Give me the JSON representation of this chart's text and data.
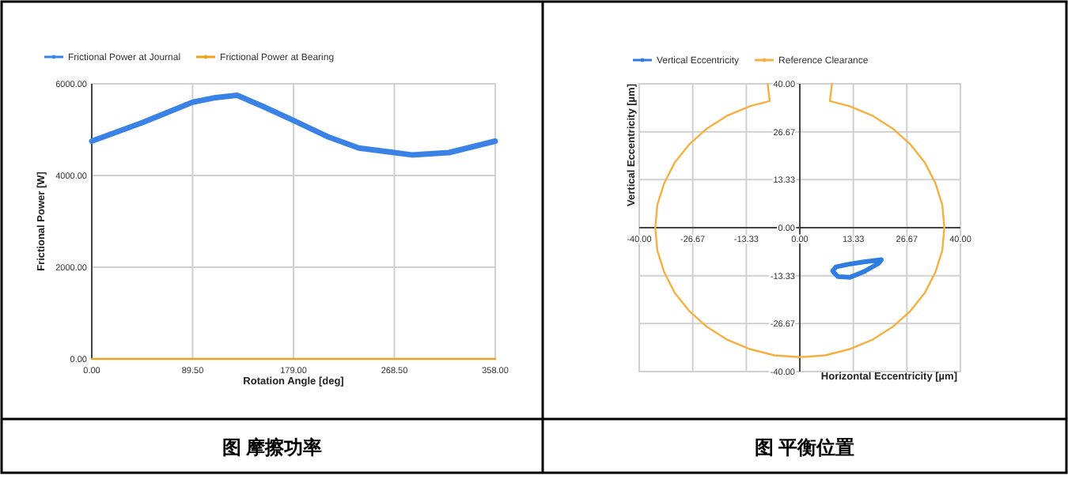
{
  "chart_data": [
    {
      "type": "line",
      "title": "图 摩擦功率",
      "xlabel": "Rotation Angle [deg]",
      "ylabel": "Frictional Power [W]",
      "xlim": [
        0,
        358
      ],
      "xticks": [
        {
          "value": 0,
          "label": "0.00"
        },
        {
          "value": 89.5,
          "label": "89.50"
        },
        {
          "value": 179,
          "label": "179.00"
        },
        {
          "value": 268.5,
          "label": "268.50"
        },
        {
          "value": 358,
          "label": "358.00"
        }
      ],
      "ylim": [
        0,
        6000
      ],
      "yticks": [
        {
          "value": 0,
          "label": "0.00"
        },
        {
          "value": 2000,
          "label": "2000.00"
        },
        {
          "value": 4000,
          "label": "4000.00"
        },
        {
          "value": 6000,
          "label": "6000.00"
        }
      ],
      "grid": true,
      "legend": "top",
      "series": [
        {
          "name": "Frictional Power at Journal",
          "color": "#3b82e6",
          "x": [
            0,
            44.6,
            89.5,
            110,
            129,
            152.5,
            179,
            209,
            237,
            268.5,
            284,
            317,
            358
          ],
          "values": [
            4750,
            5150,
            5600,
            5700,
            5750,
            5500,
            5200,
            4850,
            4600,
            4500,
            4450,
            4500,
            4750
          ]
        },
        {
          "name": "Frictional Power at Bearing",
          "color": "#f0a020",
          "x": [
            0,
            89.5,
            179,
            268.5,
            358
          ],
          "values": [
            0,
            0,
            0,
            0,
            0
          ]
        }
      ]
    },
    {
      "type": "line",
      "title": "图 平衡位置",
      "xlabel": "Horizontal Eccentricity [µm]",
      "ylabel": "Vertical Eccentricity [µm]",
      "xlim": [
        -40,
        40
      ],
      "xticks": [
        {
          "value": -40,
          "label": "-40.00"
        },
        {
          "value": -26.67,
          "label": "-26.67"
        },
        {
          "value": -13.33,
          "label": "-13.33"
        },
        {
          "value": 0,
          "label": "0.00"
        },
        {
          "value": 13.33,
          "label": "13.33"
        },
        {
          "value": 26.67,
          "label": "26.67"
        },
        {
          "value": 40,
          "label": "40.00"
        }
      ],
      "ylim": [
        -40,
        40
      ],
      "yticks": [
        {
          "value": -40,
          "label": "-40.00"
        },
        {
          "value": -26.67,
          "label": "-26.67"
        },
        {
          "value": -13.33,
          "label": "-13.33"
        },
        {
          "value": 0,
          "label": "0.00"
        },
        {
          "value": 13.33,
          "label": "13.33"
        },
        {
          "value": 26.67,
          "label": "26.67"
        },
        {
          "value": 40,
          "label": "40.00"
        }
      ],
      "grid": true,
      "legend": "top",
      "series": [
        {
          "name": "Vertical Eccentricity",
          "color": "#2f7de1",
          "x": [
            8.2,
            9,
            12,
            16,
            20.3,
            19.5,
            16,
            12.5,
            9.5,
            8.4
          ],
          "values": [
            -12.0,
            -10.9,
            -10.2,
            -9.5,
            -8.9,
            -10,
            -12.2,
            -13.8,
            -13.6,
            -12.4
          ]
        },
        {
          "name": "Reference Clearance",
          "color": "#f5b041",
          "x": [
            -8,
            -7.5,
            -12.3,
            -18.0,
            -23.1,
            -27.6,
            -31.2,
            -33.8,
            -35.5,
            -36,
            -35.5,
            -33.8,
            -31.2,
            -27.6,
            -23.1,
            -18.0,
            -12.3,
            -6.3,
            0,
            6.3,
            12.3,
            18.0,
            23.1,
            27.6,
            31.2,
            33.8,
            35.5,
            36,
            35.5,
            33.8,
            31.2,
            27.6,
            23.1,
            18.0,
            12.3,
            7.5,
            8
          ],
          "values": [
            40,
            35.2,
            33.8,
            31.2,
            27.6,
            23.1,
            18.0,
            12.3,
            6.3,
            0,
            -6.3,
            -12.3,
            -18.0,
            -23.1,
            -27.6,
            -31.2,
            -33.8,
            -35.5,
            -36,
            -35.5,
            -33.8,
            -31.2,
            -27.6,
            -23.1,
            -18.0,
            -12.3,
            -6.3,
            0,
            6.3,
            12.3,
            18.0,
            23.1,
            27.6,
            31.2,
            33.8,
            35.2,
            40
          ]
        }
      ]
    }
  ]
}
